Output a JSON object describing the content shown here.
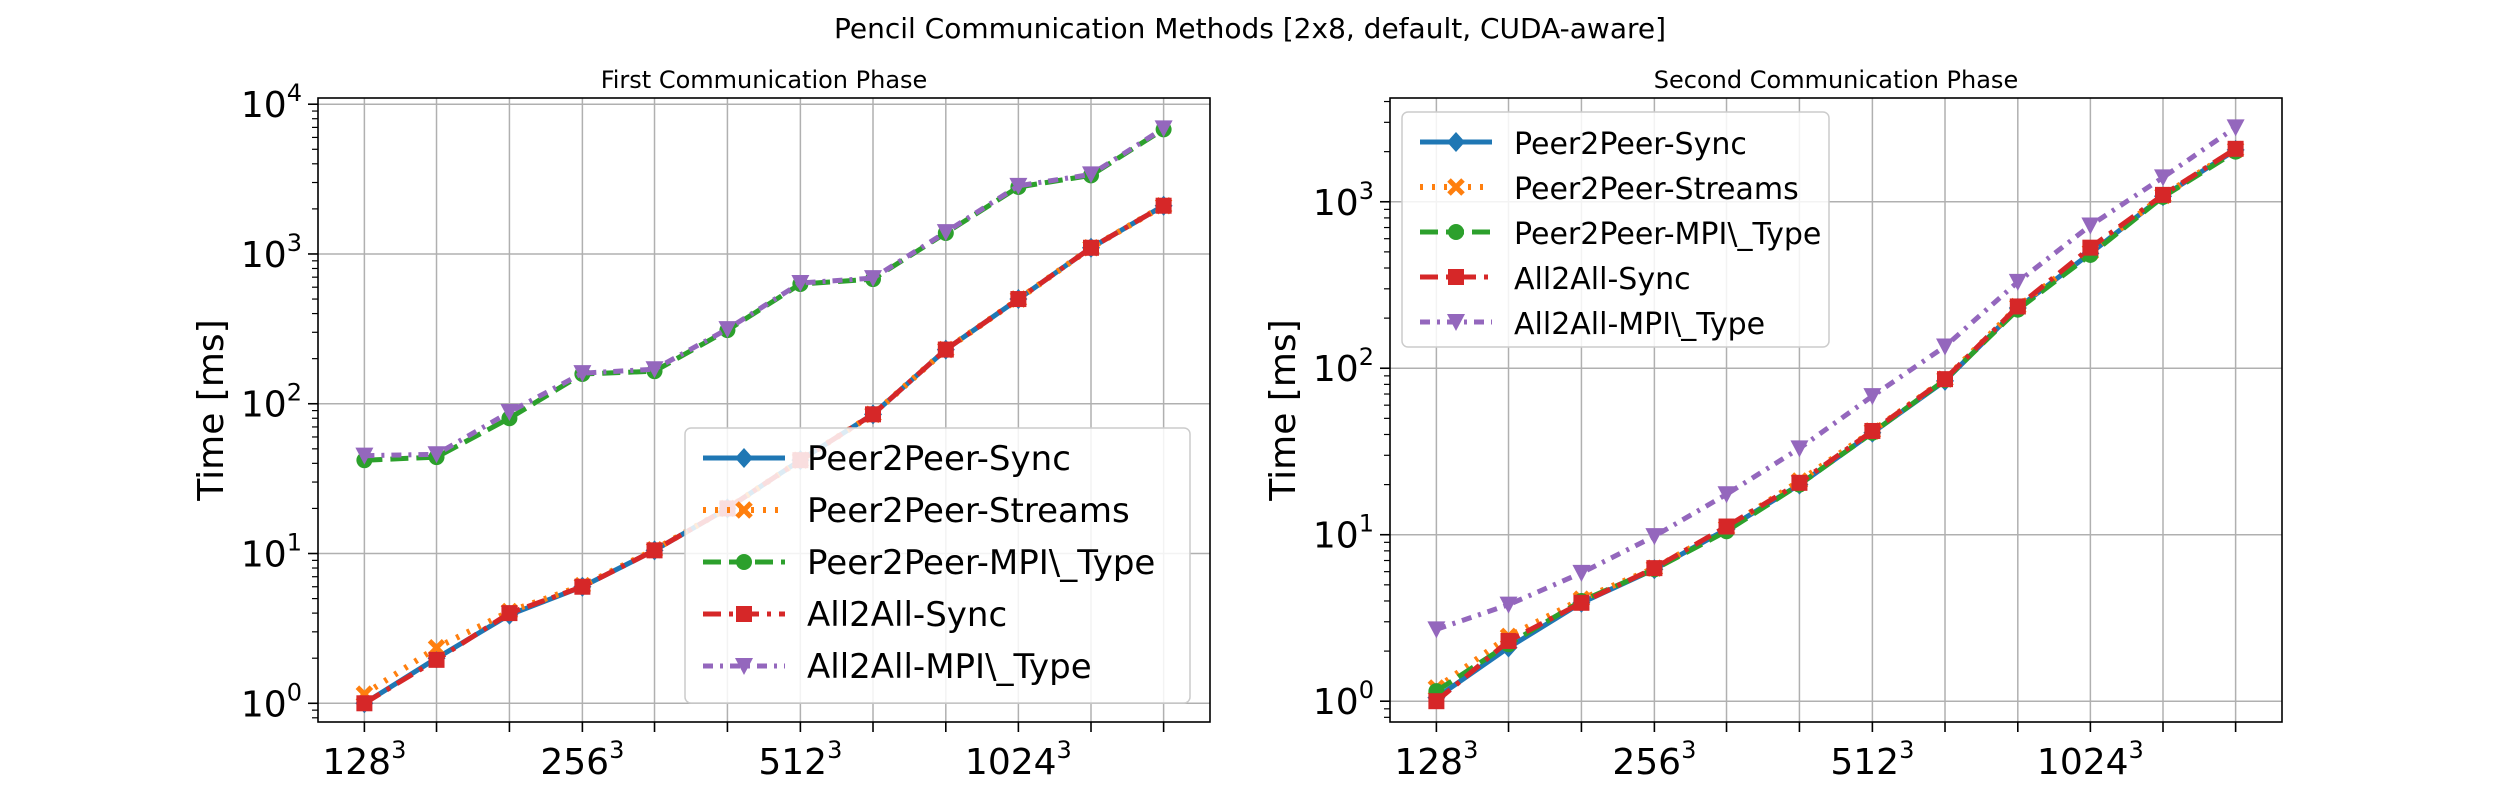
{
  "figure_title": "Pencil Communication Methods [2x8, default, CUDA-aware]",
  "colors": {
    "Peer2Peer-Sync": "#1f77b4",
    "Peer2Peer-Streams": "#ff7f0e",
    "Peer2Peer-MPI\\_Type": "#2ca02c",
    "All2All-Sync": "#d62728",
    "All2All-MPI\\_Type": "#9467bd"
  },
  "chart_data": [
    {
      "type": "line",
      "title": "First Communication Phase",
      "xlabel": "",
      "ylabel": "Time [ms]",
      "yscale": "log",
      "ylim": [
        0.75,
        11000
      ],
      "x": [
        128,
        161,
        203,
        256,
        322,
        406,
        512,
        645,
        813,
        1024,
        1290,
        1625
      ],
      "xticks": [
        {
          "value": 128,
          "base": "128",
          "exp": "3"
        },
        {
          "value": 256,
          "base": "256",
          "exp": "3"
        },
        {
          "value": 512,
          "base": "512",
          "exp": "3"
        },
        {
          "value": 1024,
          "base": "1024",
          "exp": "3"
        }
      ],
      "yticks": [
        {
          "value": 1,
          "base": "10",
          "exp": "0"
        },
        {
          "value": 10,
          "base": "10",
          "exp": "1"
        },
        {
          "value": 100,
          "base": "10",
          "exp": "2"
        },
        {
          "value": 1000,
          "base": "10",
          "exp": "3"
        },
        {
          "value": 10000,
          "base": "10",
          "exp": "4"
        }
      ],
      "grid": true,
      "legend_position": "lower-right",
      "series": [
        {
          "name": "Peer2Peer-Sync",
          "values": [
            1.0,
            2.0,
            3.9,
            6.0,
            10.5,
            20.0,
            42.0,
            85.0,
            230.0,
            500.0,
            1100.0,
            2100.0
          ]
        },
        {
          "name": "Peer2Peer-Streams",
          "values": [
            1.15,
            2.35,
            4.1,
            6.1,
            10.6,
            20.0,
            42.0,
            85.0,
            230.0,
            500.0,
            1100.0,
            2100.0
          ]
        },
        {
          "name": "Peer2Peer-MPI\\_Type",
          "values": [
            42.0,
            44.0,
            80.0,
            158.0,
            165.0,
            310.0,
            630.0,
            680.0,
            1380.0,
            2800.0,
            3350.0,
            6800.0
          ]
        },
        {
          "name": "All2All-Sync",
          "values": [
            1.0,
            1.95,
            4.0,
            6.0,
            10.5,
            20.0,
            42.0,
            85.0,
            230.0,
            500.0,
            1100.0,
            2100.0
          ]
        },
        {
          "name": "All2All-MPI\\_Type",
          "values": [
            45.0,
            46.0,
            88.0,
            160.0,
            170.0,
            315.0,
            640.0,
            690.0,
            1400.0,
            2850.0,
            3400.0,
            6900.0
          ]
        }
      ]
    },
    {
      "type": "line",
      "title": "Second Communication Phase",
      "xlabel": "",
      "ylabel": "Time [ms]",
      "yscale": "log",
      "ylim": [
        0.75,
        4200
      ],
      "x": [
        128,
        161,
        203,
        256,
        322,
        406,
        512,
        645,
        813,
        1024,
        1290,
        1625
      ],
      "xticks": [
        {
          "value": 128,
          "base": "128",
          "exp": "3"
        },
        {
          "value": 256,
          "base": "256",
          "exp": "3"
        },
        {
          "value": 512,
          "base": "512",
          "exp": "3"
        },
        {
          "value": 1024,
          "base": "1024",
          "exp": "3"
        }
      ],
      "yticks": [
        {
          "value": 1,
          "base": "10",
          "exp": "0"
        },
        {
          "value": 10,
          "base": "10",
          "exp": "1"
        },
        {
          "value": 100,
          "base": "10",
          "exp": "2"
        },
        {
          "value": 1000,
          "base": "10",
          "exp": "3"
        }
      ],
      "grid": true,
      "legend_position": "upper-left",
      "series": [
        {
          "name": "Peer2Peer-Sync",
          "values": [
            1.05,
            2.1,
            3.9,
            6.2,
            10.8,
            20.0,
            41.0,
            84.0,
            230.0,
            490.0,
            1080.0,
            2050.0
          ]
        },
        {
          "name": "Peer2Peer-Streams",
          "values": [
            1.2,
            2.45,
            4.1,
            6.3,
            11.0,
            21.0,
            42.0,
            86.0,
            235.0,
            500.0,
            1090.0,
            2060.0
          ]
        },
        {
          "name": "Peer2Peer-MPI\\_Type",
          "values": [
            1.15,
            2.2,
            4.0,
            6.2,
            10.5,
            20.0,
            41.0,
            85.0,
            225.0,
            480.0,
            1070.0,
            2000.0
          ]
        },
        {
          "name": "All2All-Sync",
          "values": [
            1.0,
            2.3,
            3.9,
            6.3,
            11.2,
            20.5,
            42.0,
            86.0,
            235.0,
            530.0,
            1100.0,
            2080.0
          ]
        },
        {
          "name": "All2All-MPI\\_Type",
          "values": [
            2.7,
            3.8,
            5.9,
            9.8,
            17.5,
            33.0,
            68.0,
            135.0,
            330.0,
            720.0,
            1400.0,
            2800.0
          ]
        }
      ]
    }
  ]
}
